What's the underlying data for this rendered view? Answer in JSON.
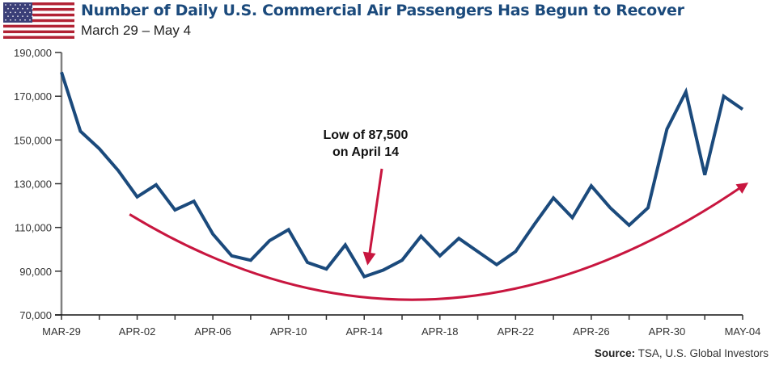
{
  "header": {
    "flag_icon": "us-flag-icon",
    "title": "Number of Daily U.S. Commercial Air Passengers Has Begun to Recover",
    "subtitle": "March 29 – May 4"
  },
  "source": {
    "label": "Source:",
    "text": " TSA, U.S. Global Investors"
  },
  "colors": {
    "line": "#1b4a7c",
    "trend": "#c8163f",
    "title": "#1b4a7c",
    "axis": "#808080"
  },
  "chart_data": {
    "type": "line",
    "title": "Number of Daily U.S. Commercial Air Passengers Has Begun to Recover",
    "subtitle": "March 29 – May 4",
    "xlabel": "",
    "ylabel": "",
    "ylim": [
      70000,
      190000
    ],
    "yticks": [
      70000,
      90000,
      110000,
      130000,
      150000,
      170000,
      190000
    ],
    "ytick_labels": [
      "70,000",
      "90,000",
      "110,000",
      "130,000",
      "150,000",
      "170,000",
      "190,000"
    ],
    "xtick_labels": [
      "MAR-29",
      "APR-02",
      "APR-06",
      "APR-10",
      "APR-14",
      "APR-18",
      "APR-22",
      "APR-26",
      "APR-30",
      "MAY-04"
    ],
    "xtick_label_every_days": 4,
    "minor_tick_every_days": 2,
    "grid": false,
    "x": [
      "Mar-29",
      "Mar-30",
      "Mar-31",
      "Apr-01",
      "Apr-02",
      "Apr-03",
      "Apr-04",
      "Apr-05",
      "Apr-06",
      "Apr-07",
      "Apr-08",
      "Apr-09",
      "Apr-10",
      "Apr-11",
      "Apr-12",
      "Apr-13",
      "Apr-14",
      "Apr-15",
      "Apr-16",
      "Apr-17",
      "Apr-18",
      "Apr-19",
      "Apr-20",
      "Apr-21",
      "Apr-22",
      "Apr-23",
      "Apr-24",
      "Apr-25",
      "Apr-26",
      "Apr-27",
      "Apr-28",
      "Apr-29",
      "Apr-30",
      "May-01",
      "May-02",
      "May-03",
      "May-04"
    ],
    "series": [
      {
        "name": "Daily U.S. Commercial Air Passengers",
        "values": [
          181000,
          154000,
          146000,
          136000,
          124000,
          129500,
          118000,
          122000,
          107000,
          97000,
          95000,
          104000,
          109000,
          94000,
          91000,
          102000,
          87500,
          90500,
          95000,
          106000,
          97000,
          105000,
          99000,
          93000,
          99000,
          111500,
          123500,
          114500,
          129000,
          119000,
          111000,
          119000,
          155000,
          172000,
          134000,
          170000,
          164000
        ]
      }
    ],
    "annotations": [
      {
        "text_line1": "Low of 87,500",
        "text_line2": "on April 14",
        "points_to_day_index": 16,
        "value": 87500
      }
    ],
    "trend_arrow": {
      "description": "U-shaped trend curve with arrowhead pointing upward at end",
      "start": {
        "day_index": 3.6,
        "value": 116000
      },
      "bottom": {
        "day_index": 16.5,
        "value": 78000
      },
      "end": {
        "day_index": 36.3,
        "value": 130500
      }
    }
  }
}
